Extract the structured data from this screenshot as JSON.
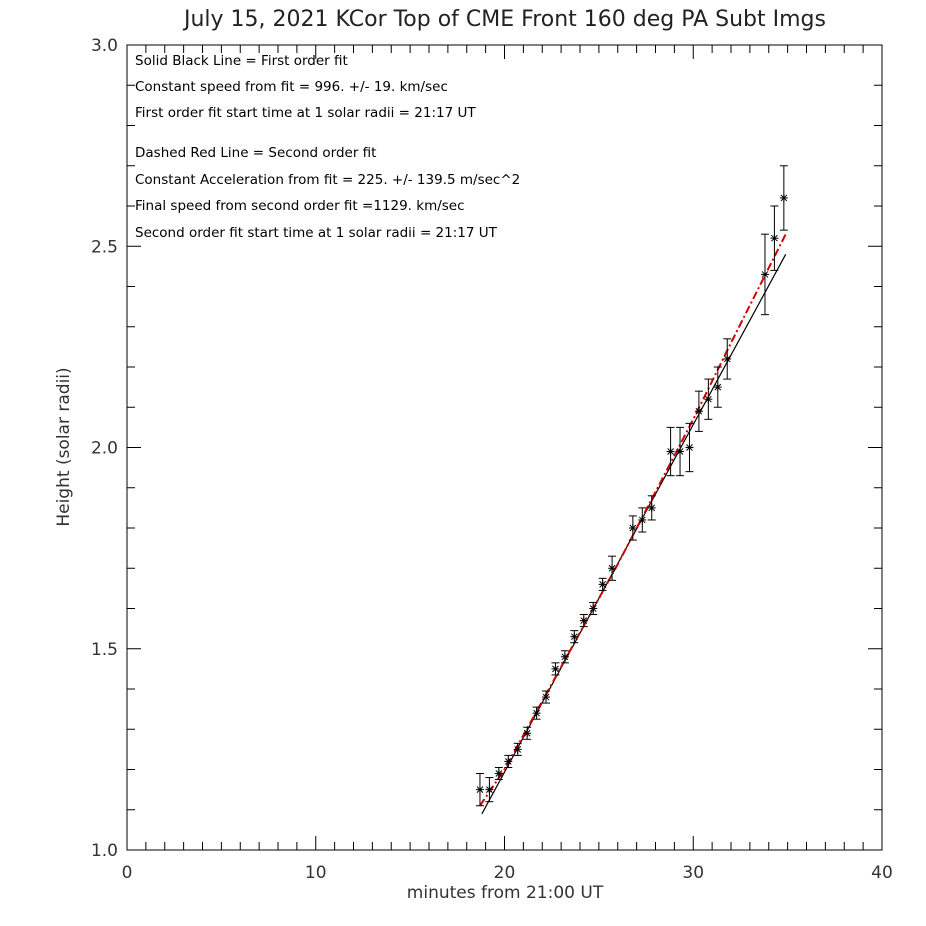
{
  "chart_data": {
    "type": "scatter",
    "title": "July 15, 2021 KCor Top of CME Front 160 deg PA Subt Imgs",
    "xlabel": "minutes from 21:00 UT",
    "ylabel": "Height (solar radii)",
    "xlim": [
      0,
      40
    ],
    "ylim": [
      1.0,
      3.0
    ],
    "x_ticks": [
      0,
      10,
      20,
      30,
      40
    ],
    "x_tick_labels": [
      "0",
      "10",
      "20",
      "30",
      "40"
    ],
    "y_ticks": [
      1.0,
      1.5,
      2.0,
      2.5,
      3.0
    ],
    "y_tick_labels": [
      "1.0",
      "1.5",
      "2.0",
      "2.5",
      "3.0"
    ],
    "x_minor_step": 1,
    "y_minor_step": 0.1,
    "grid": false,
    "annotations": [
      "Solid Black Line = First order fit",
      "Constant speed from fit = 996. +/-   19. km/sec",
      "First order fit start time at 1 solar radii = 21:17 UT",
      "Dashed Red Line = Second order fit",
      "Constant Acceleration from fit = 225. +/-    139.5 m/sec^2",
      "Final speed from second order fit =1129. km/sec",
      "Second order fit start time at 1 solar radii = 21:17 UT"
    ],
    "points": [
      {
        "x": 18.7,
        "y": 1.15,
        "err": 0.04
      },
      {
        "x": 19.2,
        "y": 1.15,
        "err": 0.03
      },
      {
        "x": 19.7,
        "y": 1.19,
        "err": 0.015
      },
      {
        "x": 20.2,
        "y": 1.22,
        "err": 0.015
      },
      {
        "x": 20.7,
        "y": 1.25,
        "err": 0.015
      },
      {
        "x": 21.2,
        "y": 1.29,
        "err": 0.015
      },
      {
        "x": 21.7,
        "y": 1.34,
        "err": 0.015
      },
      {
        "x": 22.2,
        "y": 1.38,
        "err": 0.015
      },
      {
        "x": 22.7,
        "y": 1.45,
        "err": 0.015
      },
      {
        "x": 23.2,
        "y": 1.48,
        "err": 0.015
      },
      {
        "x": 23.7,
        "y": 1.53,
        "err": 0.015
      },
      {
        "x": 24.2,
        "y": 1.57,
        "err": 0.015
      },
      {
        "x": 24.7,
        "y": 1.6,
        "err": 0.015
      },
      {
        "x": 25.2,
        "y": 1.66,
        "err": 0.015
      },
      {
        "x": 25.7,
        "y": 1.7,
        "err": 0.03
      },
      {
        "x": 26.8,
        "y": 1.8,
        "err": 0.03
      },
      {
        "x": 27.3,
        "y": 1.82,
        "err": 0.03
      },
      {
        "x": 27.8,
        "y": 1.85,
        "err": 0.03
      },
      {
        "x": 28.8,
        "y": 1.99,
        "err": 0.06
      },
      {
        "x": 29.3,
        "y": 1.99,
        "err": 0.06
      },
      {
        "x": 29.8,
        "y": 2.0,
        "err": 0.06
      },
      {
        "x": 30.3,
        "y": 2.09,
        "err": 0.05
      },
      {
        "x": 30.8,
        "y": 2.12,
        "err": 0.05
      },
      {
        "x": 31.3,
        "y": 2.15,
        "err": 0.05
      },
      {
        "x": 31.8,
        "y": 2.22,
        "err": 0.05
      },
      {
        "x": 33.8,
        "y": 2.43,
        "err": 0.1
      },
      {
        "x": 34.3,
        "y": 2.52,
        "err": 0.08
      },
      {
        "x": 34.8,
        "y": 2.62,
        "err": 0.08
      }
    ],
    "series": [
      {
        "style": "solid",
        "color": "#000000",
        "x": [
          18.8,
          34.9
        ],
        "y": [
          1.09,
          2.48
        ]
      },
      {
        "style": "dashed",
        "color": "#d40000",
        "x": [
          18.7,
          20.0,
          22.0,
          24.0,
          26.0,
          28.0,
          30.0,
          32.0,
          34.9
        ],
        "y": [
          1.11,
          1.2,
          1.37,
          1.54,
          1.71,
          1.89,
          2.07,
          2.26,
          2.53
        ]
      }
    ]
  }
}
